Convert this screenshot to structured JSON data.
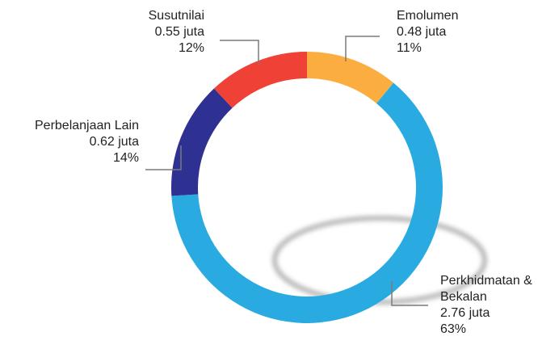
{
  "chart_data": {
    "type": "pie",
    "donut": true,
    "categories": [
      "Emolumen",
      "Perkhidmatan & Bekalan",
      "Perbelanjaan Lain",
      "Susutnilai"
    ],
    "values": [
      11,
      63,
      14,
      12
    ],
    "value_labels": [
      "11%",
      "63%",
      "14%",
      "12%"
    ],
    "amount_labels": [
      "0.48 juta",
      "2.76 juta",
      "0.62 juta",
      "0.55 juta"
    ],
    "colors": [
      "#fbae3f",
      "#29abe2",
      "#2e3192",
      "#ef4136"
    ]
  }
}
